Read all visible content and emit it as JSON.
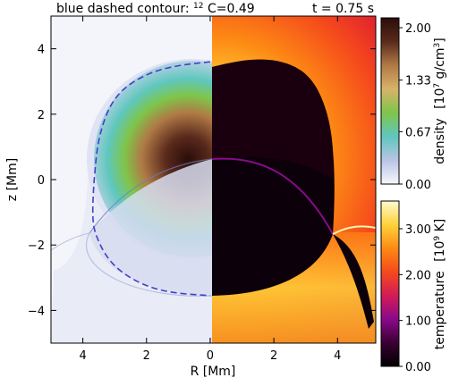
{
  "chart_data": {
    "type": "heatmap",
    "title_left": "blue dashed contour:",
    "title_isotope_sup": "12",
    "title_isotope_rest": "C=0.49",
    "title_time": "t = 0.75 s",
    "xlabel": "R [Mm]",
    "ylabel": "z [Mm]",
    "x_left_range": [
      5,
      0
    ],
    "x_right_range": [
      0,
      5.2
    ],
    "xlim": [
      -5,
      5.2
    ],
    "ylim": [
      -5,
      5
    ],
    "x_ticks": [
      "4",
      "2",
      "0",
      "2",
      "4"
    ],
    "x_tick_values": [
      -4,
      -2,
      0,
      2,
      4
    ],
    "y_ticks": [
      "4",
      "2",
      "0",
      "−2",
      "−4"
    ],
    "y_tick_values": [
      4,
      2,
      0,
      -2,
      -4
    ],
    "density_colorbar": {
      "label": "density",
      "unit_prefix": "[10",
      "unit_exp": "7",
      "unit_mid": " g/cm",
      "unit_exp2": "3",
      "unit_suffix": "]",
      "ticks": [
        "2.00",
        "1.33",
        "0.67",
        "0.00"
      ],
      "tick_values": [
        2.0,
        1.33,
        0.67,
        0.0
      ],
      "range": [
        0.0,
        2.0
      ],
      "colors": [
        "#f7f7fc",
        "#b9c4e6",
        "#5fc7bd",
        "#7fc54a",
        "#d8b36a",
        "#b07a45",
        "#5a2a1c",
        "#2a0d0a"
      ]
    },
    "temperature_colorbar": {
      "label": "temperature",
      "unit_prefix": "[10",
      "unit_exp": "9",
      "unit_mid": " K",
      "unit_suffix": "]",
      "ticks": [
        "3.00",
        "2.00",
        "1.00",
        "0.00"
      ],
      "tick_values": [
        3.0,
        2.0,
        1.0,
        0.0
      ],
      "range": [
        0.0,
        3.0
      ],
      "colors": [
        "#000000",
        "#3a0033",
        "#8a0a8a",
        "#d21c55",
        "#f54a1c",
        "#fd8a14",
        "#ffd23a",
        "#fffad0"
      ]
    },
    "contour": {
      "color": "#4040c8",
      "style": "dashed",
      "value": 0.49,
      "points": [
        [
          0,
          3.6
        ],
        [
          -1.0,
          3.5
        ],
        [
          -2.0,
          3.25
        ],
        [
          -3.0,
          2.6
        ],
        [
          -3.5,
          1.4
        ],
        [
          -3.65,
          0
        ],
        [
          -3.7,
          -1.0
        ],
        [
          -3.65,
          -1.6
        ],
        [
          -3.2,
          -2.5
        ],
        [
          -2.4,
          -3.1
        ],
        [
          -1.4,
          -3.45
        ],
        [
          0,
          -3.55
        ]
      ]
    },
    "grid": false
  }
}
